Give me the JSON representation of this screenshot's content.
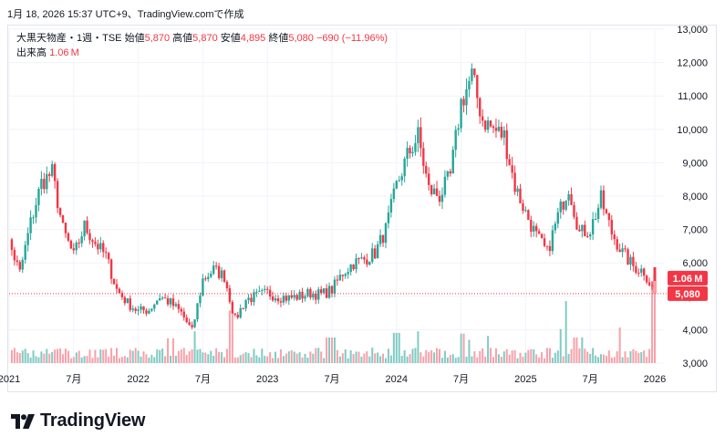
{
  "header": {
    "timestamp": "1月 18, 2026 15:37 UTC+9",
    "created_with": "、TradingView.comで作成"
  },
  "legend": {
    "symbol": "大黒天物産・1週・TSE",
    "open_label": "始値",
    "open": "5,870",
    "high_label": "高値",
    "high": "5,870",
    "low_label": "安値",
    "low": "4,895",
    "close_label": "終値",
    "close": "5,080",
    "change": "−690 (−11.96%)",
    "volume_label": "出来高",
    "volume": "1.06 M"
  },
  "brand": {
    "name": "TradingView",
    "logo_icon": "tradingview-logo-icon"
  },
  "colors": {
    "up": "#26a69a",
    "down": "#f23645",
    "up_vol": "#80cbc4",
    "down_vol": "#f7a1a9",
    "grid": "#f0f3fa",
    "axis_text": "#131722"
  },
  "chart_data": {
    "type": "candlestick",
    "interval": "1週",
    "y_axis": {
      "position": "right",
      "ylim": [
        3000,
        13000
      ],
      "ticks": [
        3000,
        4000,
        5000,
        6000,
        7000,
        8000,
        9000,
        10000,
        11000,
        12000,
        13000
      ],
      "tick_labels": [
        "3,000",
        "4,000",
        "5,000",
        "6,000",
        "7,000",
        "8,000",
        "9,000",
        "10,000",
        "11,000",
        "12,000",
        "13,000"
      ]
    },
    "x_axis": {
      "range": [
        "2021-01",
        "2026-01"
      ],
      "ticks": [
        {
          "date": "2021-01",
          "label": "2021"
        },
        {
          "date": "2021-07",
          "label": "7月"
        },
        {
          "date": "2022-01",
          "label": "2022"
        },
        {
          "date": "2022-07",
          "label": "7月"
        },
        {
          "date": "2023-01",
          "label": "2023"
        },
        {
          "date": "2023-07",
          "label": "7月"
        },
        {
          "date": "2024-01",
          "label": "2024"
        },
        {
          "date": "2024-07",
          "label": "7月"
        },
        {
          "date": "2025-01",
          "label": "2025"
        },
        {
          "date": "2025-07",
          "label": "7月"
        },
        {
          "date": "2026-01",
          "label": "2026"
        }
      ]
    },
    "price_path": [
      [
        "2020-12",
        5800
      ],
      [
        "2021-01",
        6600
      ],
      [
        "2021-02",
        5700
      ],
      [
        "2021-03",
        7200
      ],
      [
        "2021-04",
        8400
      ],
      [
        "2021-05",
        8700
      ],
      [
        "2021-06",
        7000
      ],
      [
        "2021-07",
        6200
      ],
      [
        "2021-08",
        7100
      ],
      [
        "2021-09",
        6600
      ],
      [
        "2021-10",
        6200
      ],
      [
        "2021-11",
        5200
      ],
      [
        "2021-12",
        4800
      ],
      [
        "2022-01",
        4550
      ],
      [
        "2022-02",
        4600
      ],
      [
        "2022-03",
        5000
      ],
      [
        "2022-04",
        4800
      ],
      [
        "2022-05",
        4500
      ],
      [
        "2022-06",
        3950
      ],
      [
        "2022-07",
        5500
      ],
      [
        "2022-08",
        5800
      ],
      [
        "2022-09",
        5600
      ],
      [
        "2022-10",
        4300
      ],
      [
        "2022-11",
        4900
      ],
      [
        "2022-12",
        5000
      ],
      [
        "2023-01",
        5100
      ],
      [
        "2023-02",
        5000
      ],
      [
        "2023-03",
        4950
      ],
      [
        "2023-04",
        5000
      ],
      [
        "2023-05",
        5100
      ],
      [
        "2023-06",
        5050
      ],
      [
        "2023-07",
        5200
      ],
      [
        "2023-08",
        5700
      ],
      [
        "2023-09",
        6000
      ],
      [
        "2023-10",
        6100
      ],
      [
        "2023-11",
        6300
      ],
      [
        "2023-12",
        7000
      ],
      [
        "2024-01",
        8300
      ],
      [
        "2024-02",
        9200
      ],
      [
        "2024-03",
        9800
      ],
      [
        "2024-04",
        8200
      ],
      [
        "2024-05",
        8000
      ],
      [
        "2024-06",
        8600
      ],
      [
        "2024-07",
        10800
      ],
      [
        "2024-08",
        11600
      ],
      [
        "2024-09",
        10300
      ],
      [
        "2024-10",
        10000
      ],
      [
        "2024-11",
        9800
      ],
      [
        "2024-12",
        8300
      ],
      [
        "2025-01",
        7500
      ],
      [
        "2025-02",
        6800
      ],
      [
        "2025-03",
        6300
      ],
      [
        "2025-04",
        7400
      ],
      [
        "2025-05",
        8300
      ],
      [
        "2025-06",
        6900
      ],
      [
        "2025-07",
        7000
      ],
      [
        "2025-08",
        7900
      ],
      [
        "2025-09",
        6900
      ],
      [
        "2025-10",
        6300
      ],
      [
        "2025-11",
        5900
      ],
      [
        "2025-12",
        5750
      ],
      [
        "2026-01",
        5080
      ]
    ],
    "last_candle": {
      "open": 5870,
      "high": 5870,
      "low": 4895,
      "close": 5080
    },
    "last_price": 5080,
    "last_price_label": "5,080",
    "last_volume_label": "1.06 M",
    "volume_spikes": [
      {
        "date": "2021-01",
        "shares_m": 0.3
      },
      {
        "date": "2021-03",
        "shares_m": 0.38
      },
      {
        "date": "2021-07",
        "shares_m": 0.28
      },
      {
        "date": "2022-04",
        "shares_m": 0.32
      },
      {
        "date": "2022-06",
        "shares_m": 0.41
      },
      {
        "date": "2022-10",
        "shares_m": 0.68
      },
      {
        "date": "2023-07",
        "shares_m": 0.33
      },
      {
        "date": "2023-10",
        "shares_m": 0.3
      },
      {
        "date": "2024-01",
        "shares_m": 0.39
      },
      {
        "date": "2024-03",
        "shares_m": 0.41
      },
      {
        "date": "2024-07",
        "shares_m": 0.38
      },
      {
        "date": "2024-08",
        "shares_m": 0.3
      },
      {
        "date": "2024-10",
        "shares_m": 0.35
      },
      {
        "date": "2025-04",
        "shares_m": 0.44
      },
      {
        "date": "2025-05",
        "shares_m": 0.8
      },
      {
        "date": "2025-06",
        "shares_m": 0.33
      },
      {
        "date": "2025-10",
        "shares_m": 0.46
      },
      {
        "date": "2026-01",
        "shares_m": 1.06
      }
    ]
  }
}
